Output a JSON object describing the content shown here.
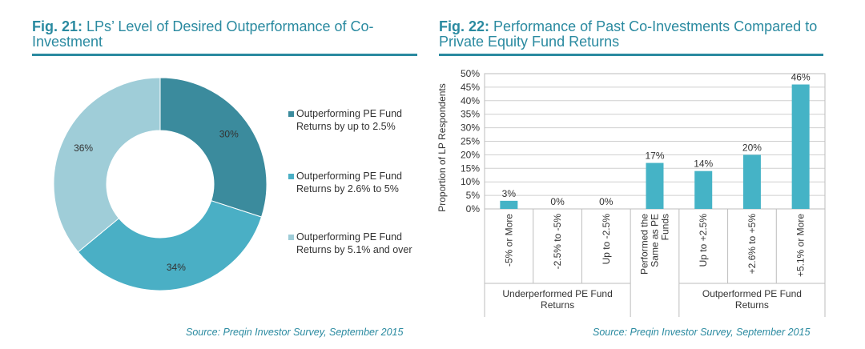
{
  "fig21": {
    "title_num": "Fig. 21:",
    "title_text": "LPs’ Level of Desired Outperformance of Co-Investment",
    "source": "Source: Preqin Investor Survey, September 2015"
  },
  "fig22": {
    "title_num": "Fig. 22:",
    "title_text": "Performance of Past Co-Investments Compared to Private Equity Fund Returns",
    "source": "Source: Preqin Investor Survey, September 2015"
  },
  "colors": {
    "accent": "#2a8aa0",
    "slice1": "#3b8b9d",
    "slice2": "#4aafc5",
    "slice3": "#9fcdd8",
    "bar": "#45b3c6"
  },
  "chart_data": [
    {
      "type": "pie",
      "variant": "donut",
      "title": "LPs’ Level of Desired Outperformance of Co-Investment",
      "slices": [
        {
          "label": "Outperforming PE Fund Returns by up to 2.5%",
          "value": 30,
          "value_label": "30%"
        },
        {
          "label": "Outperforming PE Fund Returns by 2.6% to 5%",
          "value": 34,
          "value_label": "34%"
        },
        {
          "label": "Outperforming PE Fund Returns by 5.1% and over",
          "value": 36,
          "value_label": "36%"
        }
      ],
      "legend_position": "right"
    },
    {
      "type": "bar",
      "title": "Performance of Past Co-Investments Compared to Private Equity Fund Returns",
      "ylabel": "Proportion of LP Respondents",
      "ylim": [
        0,
        50
      ],
      "yticks": [
        "0%",
        "5%",
        "10%",
        "15%",
        "20%",
        "25%",
        "30%",
        "35%",
        "40%",
        "45%",
        "50%"
      ],
      "grid": true,
      "categories": [
        "-5% or More",
        "-2.5% to -5%",
        "Up to -2.5%",
        "Performed the Same as PE Funds",
        "Up to +2.5%",
        "+2.6% to +5%",
        "+5.1% or More"
      ],
      "values": [
        3,
        0,
        0,
        17,
        14,
        20,
        46
      ],
      "value_labels": [
        "3%",
        "0%",
        "0%",
        "17%",
        "14%",
        "20%",
        "46%"
      ],
      "groups": [
        {
          "label": "Underperformed PE Fund Returns"
        },
        {
          "label": "Outperformed PE Fund Returns"
        }
      ]
    }
  ]
}
